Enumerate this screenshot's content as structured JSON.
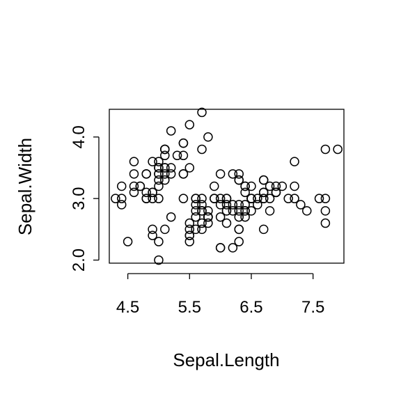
{
  "chart_data": {
    "type": "scatter",
    "xlabel": "Sepal.Length",
    "ylabel": "Sepal.Width",
    "xlim": [
      4.2,
      8.0
    ],
    "ylim": [
      1.95,
      4.45
    ],
    "x_ticks": [
      4.5,
      5.5,
      6.5,
      7.5
    ],
    "x_tick_labels": [
      "4.5",
      "5.5",
      "6.5",
      "7.5"
    ],
    "y_ticks": [
      2.0,
      3.0,
      4.0
    ],
    "y_tick_labels": [
      "2.0",
      "3.0",
      "4.0"
    ],
    "grid": false,
    "legend": "none",
    "marker": "open-circle",
    "color": "#000000",
    "points": [
      [
        5.1,
        3.5
      ],
      [
        4.9,
        3.0
      ],
      [
        4.7,
        3.2
      ],
      [
        4.6,
        3.1
      ],
      [
        5.0,
        3.6
      ],
      [
        5.4,
        3.9
      ],
      [
        4.6,
        3.4
      ],
      [
        5.0,
        3.4
      ],
      [
        4.4,
        2.9
      ],
      [
        4.9,
        3.1
      ],
      [
        5.4,
        3.7
      ],
      [
        4.8,
        3.4
      ],
      [
        4.8,
        3.0
      ],
      [
        4.3,
        3.0
      ],
      [
        5.8,
        4.0
      ],
      [
        5.7,
        4.4
      ],
      [
        5.4,
        3.9
      ],
      [
        5.1,
        3.5
      ],
      [
        5.7,
        3.8
      ],
      [
        5.1,
        3.8
      ],
      [
        5.4,
        3.4
      ],
      [
        5.1,
        3.7
      ],
      [
        4.6,
        3.6
      ],
      [
        5.1,
        3.3
      ],
      [
        4.8,
        3.4
      ],
      [
        5.0,
        3.0
      ],
      [
        5.0,
        3.4
      ],
      [
        5.2,
        3.5
      ],
      [
        5.2,
        3.4
      ],
      [
        4.7,
        3.2
      ],
      [
        4.8,
        3.1
      ],
      [
        5.4,
        3.4
      ],
      [
        5.2,
        4.1
      ],
      [
        5.5,
        4.2
      ],
      [
        4.9,
        3.1
      ],
      [
        5.0,
        3.2
      ],
      [
        5.5,
        3.5
      ],
      [
        4.9,
        3.6
      ],
      [
        4.4,
        3.0
      ],
      [
        5.1,
        3.4
      ],
      [
        5.0,
        3.5
      ],
      [
        4.5,
        2.3
      ],
      [
        4.4,
        3.2
      ],
      [
        5.0,
        3.5
      ],
      [
        5.1,
        3.8
      ],
      [
        4.8,
        3.0
      ],
      [
        5.1,
        3.8
      ],
      [
        4.6,
        3.2
      ],
      [
        5.3,
        3.7
      ],
      [
        5.0,
        3.3
      ],
      [
        7.0,
        3.2
      ],
      [
        6.4,
        3.2
      ],
      [
        6.9,
        3.1
      ],
      [
        5.5,
        2.3
      ],
      [
        6.5,
        2.8
      ],
      [
        5.7,
        2.8
      ],
      [
        6.3,
        3.3
      ],
      [
        4.9,
        2.4
      ],
      [
        6.6,
        2.9
      ],
      [
        5.2,
        2.7
      ],
      [
        5.0,
        2.0
      ],
      [
        5.9,
        3.0
      ],
      [
        6.0,
        2.2
      ],
      [
        6.1,
        2.9
      ],
      [
        5.6,
        2.9
      ],
      [
        6.7,
        3.1
      ],
      [
        5.6,
        3.0
      ],
      [
        5.8,
        2.7
      ],
      [
        6.2,
        2.2
      ],
      [
        5.6,
        2.5
      ],
      [
        5.9,
        3.2
      ],
      [
        6.1,
        2.8
      ],
      [
        6.3,
        2.5
      ],
      [
        6.1,
        2.8
      ],
      [
        6.4,
        2.9
      ],
      [
        6.6,
        3.0
      ],
      [
        6.8,
        2.8
      ],
      [
        6.7,
        3.0
      ],
      [
        6.0,
        2.9
      ],
      [
        5.7,
        2.6
      ],
      [
        5.5,
        2.4
      ],
      [
        5.5,
        2.4
      ],
      [
        5.8,
        2.7
      ],
      [
        6.0,
        2.7
      ],
      [
        5.4,
        3.0
      ],
      [
        6.0,
        3.4
      ],
      [
        6.7,
        3.1
      ],
      [
        6.3,
        2.3
      ],
      [
        5.6,
        3.0
      ],
      [
        5.5,
        2.5
      ],
      [
        5.5,
        2.6
      ],
      [
        6.1,
        3.0
      ],
      [
        5.8,
        2.6
      ],
      [
        5.0,
        2.3
      ],
      [
        5.6,
        2.7
      ],
      [
        5.7,
        3.0
      ],
      [
        5.7,
        2.9
      ],
      [
        6.2,
        2.9
      ],
      [
        5.1,
        2.5
      ],
      [
        5.7,
        2.8
      ],
      [
        6.3,
        3.3
      ],
      [
        5.8,
        2.7
      ],
      [
        7.1,
        3.0
      ],
      [
        6.3,
        2.9
      ],
      [
        6.5,
        3.0
      ],
      [
        7.6,
        3.0
      ],
      [
        4.9,
        2.5
      ],
      [
        7.3,
        2.9
      ],
      [
        6.7,
        2.5
      ],
      [
        7.2,
        3.6
      ],
      [
        6.5,
        3.2
      ],
      [
        6.4,
        2.7
      ],
      [
        6.8,
        3.0
      ],
      [
        5.7,
        2.5
      ],
      [
        5.8,
        2.8
      ],
      [
        6.4,
        3.2
      ],
      [
        6.5,
        3.0
      ],
      [
        7.7,
        3.8
      ],
      [
        7.7,
        2.6
      ],
      [
        6.0,
        2.2
      ],
      [
        6.9,
        3.2
      ],
      [
        5.6,
        2.8
      ],
      [
        7.7,
        2.8
      ],
      [
        6.3,
        2.7
      ],
      [
        6.7,
        3.3
      ],
      [
        7.2,
        3.2
      ],
      [
        6.2,
        2.8
      ],
      [
        6.1,
        3.0
      ],
      [
        6.4,
        2.8
      ],
      [
        7.2,
        3.0
      ],
      [
        7.4,
        2.8
      ],
      [
        7.9,
        3.8
      ],
      [
        6.4,
        2.8
      ],
      [
        6.3,
        2.8
      ],
      [
        6.1,
        2.6
      ],
      [
        7.7,
        3.0
      ],
      [
        6.3,
        3.4
      ],
      [
        6.4,
        3.1
      ],
      [
        6.0,
        3.0
      ],
      [
        6.9,
        3.1
      ],
      [
        6.7,
        3.1
      ],
      [
        6.9,
        3.1
      ],
      [
        5.8,
        2.7
      ],
      [
        6.8,
        3.2
      ],
      [
        6.7,
        3.3
      ],
      [
        6.7,
        3.0
      ],
      [
        6.3,
        2.5
      ],
      [
        6.5,
        3.0
      ],
      [
        6.2,
        3.4
      ],
      [
        5.9,
        3.0
      ]
    ]
  }
}
